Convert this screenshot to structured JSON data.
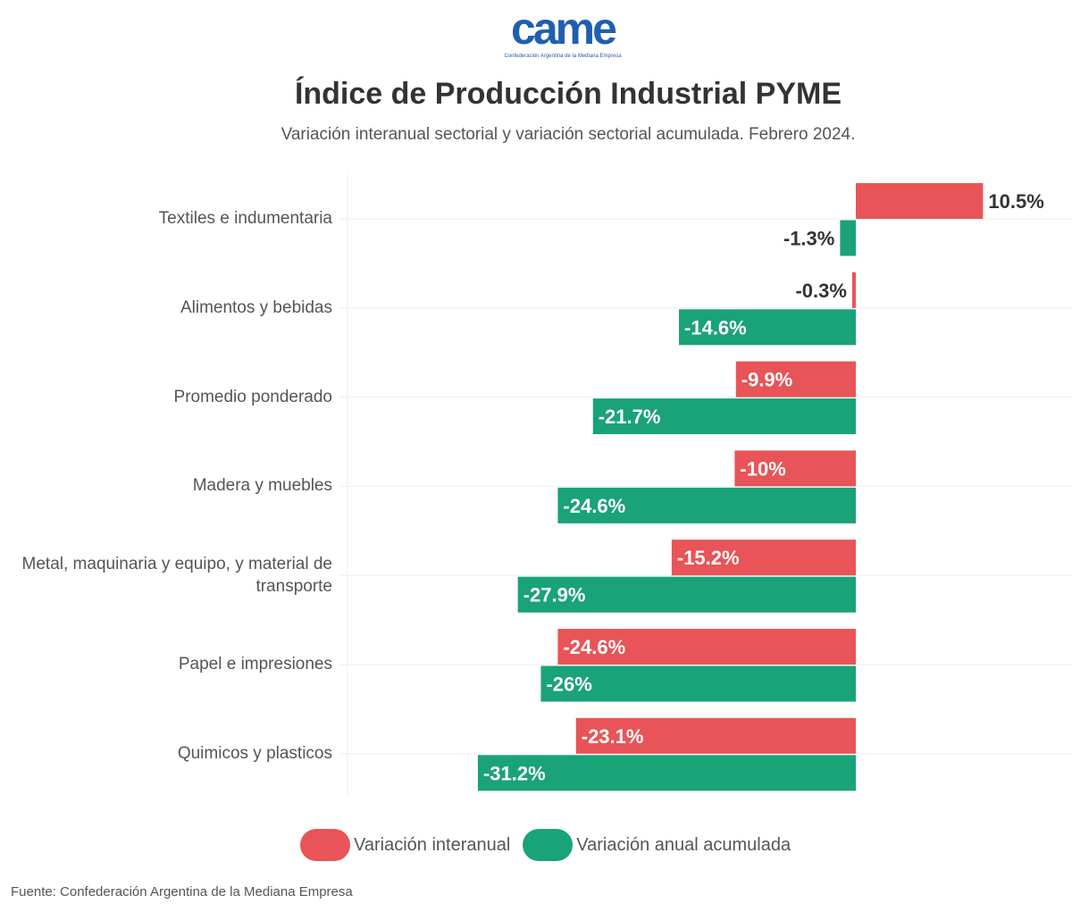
{
  "logo": {
    "word": "came",
    "subtitle": "Confederación Argentina de la Mediana Empresa"
  },
  "colors": {
    "interanual": "#e85457",
    "acumulada": "#1aa278"
  },
  "chart_data": {
    "type": "bar",
    "orientation": "horizontal",
    "title": "Índice de Producción Industrial PYME",
    "subtitle": "Variación interanual sectorial y variación sectorial acumulada. Febrero 2024.",
    "categories": [
      "Textiles e indumentaria",
      "Alimentos y bebidas",
      "Promedio ponderado",
      "Madera y muebles",
      "Metal, maquinaria y equipo, y material de transporte",
      "Papel e impresiones",
      "Quimicos y plasticos"
    ],
    "series": [
      {
        "name": "Variación interanual",
        "values": [
          10.5,
          -0.3,
          -9.9,
          -10,
          -15.2,
          -24.6,
          -23.1
        ],
        "labels": [
          "10.5%",
          "-0.3%",
          "-9.9%",
          "-10%",
          "-15.2%",
          "-24.6%",
          "-23.1%"
        ]
      },
      {
        "name": "Variación anual acumulada",
        "values": [
          -1.3,
          -14.6,
          -21.7,
          -24.6,
          -27.9,
          -26,
          -31.2
        ],
        "labels": [
          "-1.3%",
          "-14.6%",
          "-21.7%",
          "-24.6%",
          "-27.9%",
          "-26%",
          "-31.2%"
        ]
      }
    ],
    "legend": "bottom",
    "source": "Fuente: Confederación Argentina de la Mediana Empresa"
  }
}
